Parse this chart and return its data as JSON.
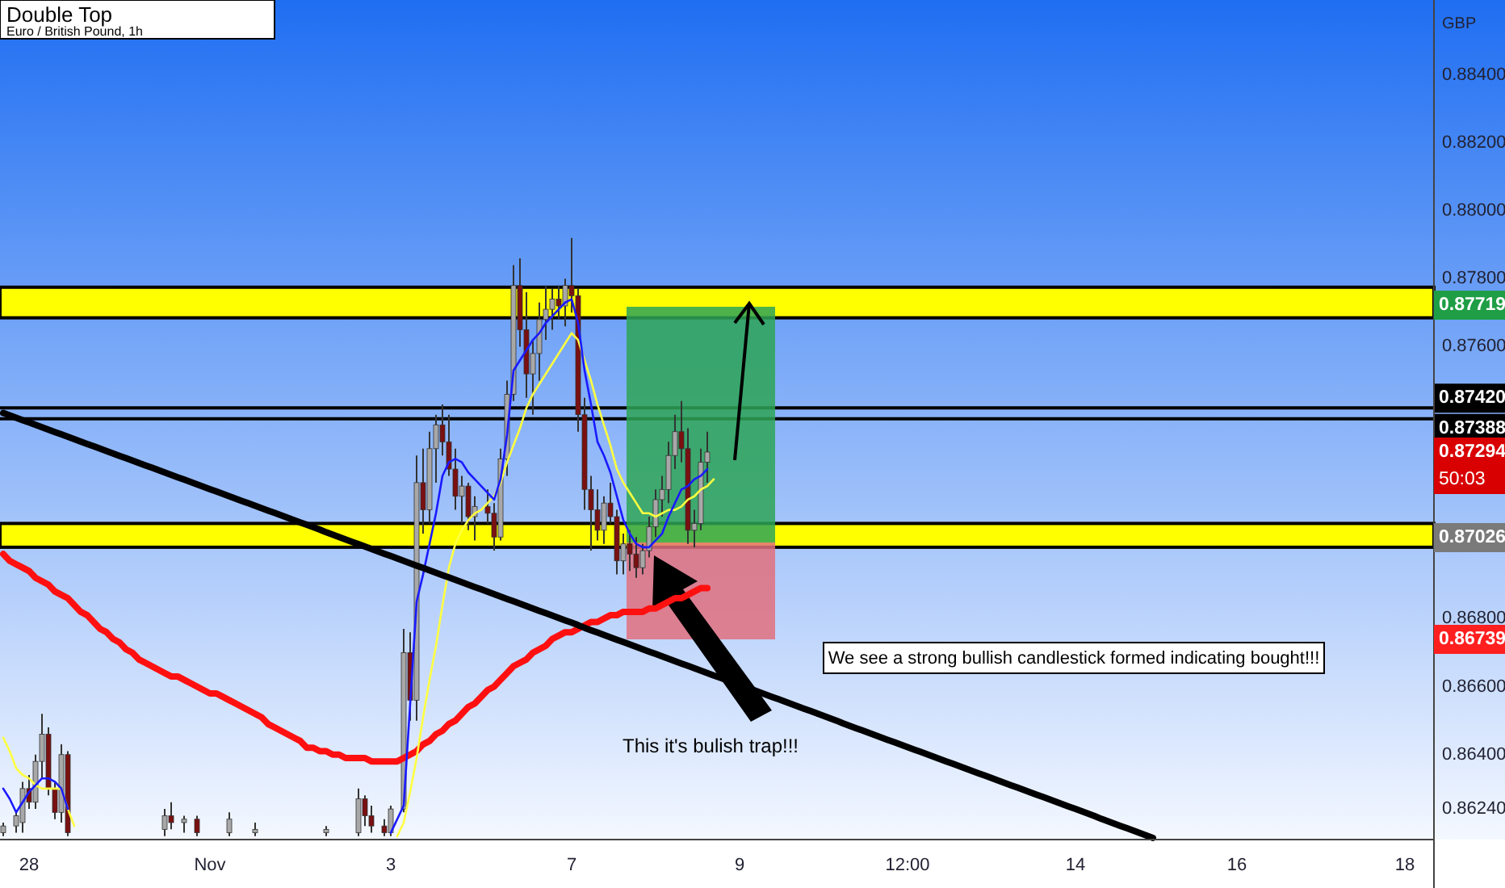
{
  "chart_data": {
    "type": "candlestick",
    "title": "Double Top",
    "subtitle": "Euro / British Pound, 1h",
    "ylabel": "GBP",
    "ylim": [
      0.8615,
      0.8862
    ],
    "yticks": [
      {
        "value": 0.884,
        "label": "0.88400"
      },
      {
        "value": 0.882,
        "label": "0.88200"
      },
      {
        "value": 0.88,
        "label": "0.88000"
      },
      {
        "value": 0.878,
        "label": "0.87800"
      },
      {
        "value": 0.876,
        "label": "0.87600"
      },
      {
        "value": 0.868,
        "label": "0.86800"
      },
      {
        "value": 0.866,
        "label": "0.86600"
      },
      {
        "value": 0.864,
        "label": "0.86400"
      },
      {
        "value": 0.8624,
        "label": "0.86240"
      }
    ],
    "categories": [
      null,
      null,
      null,
      null,
      "28",
      null,
      null,
      null,
      null,
      null,
      null,
      null,
      null,
      null,
      null,
      null,
      null,
      null,
      null,
      null,
      null,
      null,
      null,
      null,
      null,
      null,
      null,
      null,
      null,
      null,
      null,
      null,
      "Nov",
      null,
      null,
      null,
      null,
      null,
      null,
      null,
      null,
      null,
      null,
      null,
      null,
      null,
      null,
      null,
      null,
      null,
      null,
      null,
      null,
      null,
      null,
      null,
      null,
      null,
      null,
      null,
      "3",
      null,
      null,
      null,
      null,
      null,
      null,
      null,
      null,
      null,
      null,
      null,
      null,
      null,
      null,
      null,
      null,
      null,
      null,
      null,
      null,
      null,
      null,
      null,
      null,
      null,
      null,
      null,
      "7",
      null,
      null,
      null,
      null,
      null,
      null,
      null,
      null,
      null,
      null,
      null,
      null,
      null,
      null,
      null,
      null,
      null,
      null,
      null,
      null,
      null,
      null,
      null,
      null,
      null,
      "9",
      null,
      null,
      null,
      null,
      null,
      null,
      null,
      null,
      null,
      null,
      null,
      null,
      null,
      null,
      null,
      null,
      null,
      null,
      null,
      null,
      null,
      null,
      null,
      null,
      null,
      "12:00",
      null,
      null,
      null,
      null,
      null,
      null,
      null,
      null,
      null,
      null,
      null,
      null,
      null,
      null,
      null,
      null,
      null,
      null,
      null,
      null,
      null,
      null,
      null,
      null,
      null,
      "14",
      null,
      null,
      null,
      null,
      null,
      null,
      null,
      null,
      null,
      null,
      null,
      null,
      null,
      null,
      null,
      null,
      null,
      null,
      null,
      null,
      null,
      null,
      null,
      null,
      "16",
      null,
      null,
      null,
      null,
      null,
      null,
      null,
      null,
      null,
      null,
      null,
      null,
      null,
      null,
      null,
      null,
      null,
      null,
      null,
      null,
      null,
      null,
      null,
      null,
      null,
      "18",
      null,
      null,
      null,
      null
    ],
    "ohlc": [
      [
        0.8617,
        0.862,
        0.8616,
        0.8619
      ],
      null,
      [
        0.8619,
        0.8623,
        0.8617,
        0.8622
      ],
      [
        0.862,
        0.8632,
        0.8617,
        0.863
      ],
      [
        0.863,
        0.8634,
        0.8624,
        0.8626
      ],
      [
        0.8626,
        0.864,
        0.8624,
        0.8638
      ],
      [
        0.8638,
        0.8652,
        0.8633,
        0.8646
      ],
      [
        0.8646,
        0.8648,
        0.8628,
        0.863
      ],
      [
        0.863,
        0.8632,
        0.8621,
        0.8623
      ],
      [
        0.8623,
        0.8643,
        0.862,
        0.864
      ],
      [
        0.864,
        0.8641,
        0.8616,
        0.8617
      ],
      null,
      null,
      null,
      null,
      null,
      null,
      null,
      null,
      null,
      null,
      null,
      null,
      null,
      null,
      [
        0.8618,
        0.8624,
        0.8616,
        0.8622
      ],
      [
        0.8622,
        0.8626,
        0.8618,
        0.862
      ],
      null,
      [
        0.862,
        0.8622,
        0.8617,
        0.8621
      ],
      null,
      [
        0.8621,
        0.8622,
        0.8616,
        0.8617
      ],
      null,
      null,
      null,
      null,
      [
        0.8617,
        0.8623,
        0.8616,
        0.8621
      ],
      null,
      null,
      null,
      [
        0.8617,
        0.862,
        0.8616,
        0.8618
      ],
      null,
      null,
      null,
      null,
      null,
      null,
      null,
      null,
      null,
      null,
      [
        0.8617,
        0.8619,
        0.8616,
        0.8618
      ],
      null,
      null,
      null,
      null,
      [
        0.8617,
        0.863,
        0.8616,
        0.8627
      ],
      [
        0.8627,
        0.8628,
        0.8619,
        0.8622
      ],
      [
        0.8622,
        0.8625,
        0.8617,
        0.8619
      ],
      null,
      [
        0.8619,
        0.8621,
        0.8616,
        0.8617
      ],
      [
        0.8617,
        0.8625,
        0.8616,
        0.8624
      ],
      null,
      [
        0.8624,
        0.8677,
        0.8623,
        0.867
      ],
      [
        0.867,
        0.8676,
        0.865,
        0.8656
      ],
      [
        0.8656,
        0.8728,
        0.865,
        0.872
      ],
      [
        0.872,
        0.873,
        0.8705,
        0.8712
      ],
      [
        0.8712,
        0.8735,
        0.8708,
        0.873
      ],
      [
        0.873,
        0.874,
        0.872,
        0.8737
      ],
      [
        0.8737,
        0.8743,
        0.8728,
        0.8732
      ],
      [
        0.8732,
        0.874,
        0.8722,
        0.8724
      ],
      [
        0.8724,
        0.873,
        0.8712,
        0.8716
      ],
      [
        0.8716,
        0.8722,
        0.8708,
        0.8719
      ],
      [
        0.8719,
        0.872,
        0.8706,
        0.871
      ],
      [
        0.871,
        0.8716,
        0.8703,
        0.8713
      ],
      null,
      [
        0.8713,
        0.8718,
        0.8708,
        0.8711
      ],
      [
        0.8711,
        0.8714,
        0.87,
        0.8704
      ],
      [
        0.8704,
        0.873,
        0.8703,
        0.8727
      ],
      [
        0.8727,
        0.875,
        0.8722,
        0.8746
      ],
      [
        0.8746,
        0.8784,
        0.8744,
        0.8778
      ],
      [
        0.8778,
        0.8786,
        0.876,
        0.8765
      ],
      [
        0.8765,
        0.8776,
        0.8745,
        0.8752
      ],
      [
        0.8752,
        0.8762,
        0.874,
        0.8758
      ],
      [
        0.8758,
        0.8773,
        0.875,
        0.8768
      ],
      [
        0.8768,
        0.8778,
        0.8762,
        0.8771
      ],
      [
        0.8771,
        0.8777,
        0.8765,
        0.8774
      ],
      [
        0.8774,
        0.8778,
        0.8768,
        0.8772
      ],
      [
        0.8772,
        0.878,
        0.8766,
        0.8778
      ],
      [
        0.8778,
        0.8792,
        0.877,
        0.8775
      ],
      [
        0.8775,
        0.8777,
        0.8735,
        0.874
      ],
      [
        0.874,
        0.8745,
        0.8712,
        0.8718
      ],
      [
        0.8718,
        0.8722,
        0.87,
        0.8712
      ],
      [
        0.8712,
        0.8718,
        0.8703,
        0.8706
      ],
      [
        0.8706,
        0.8716,
        0.8702,
        0.8714
      ],
      [
        0.8714,
        0.872,
        0.8708,
        0.871
      ],
      [
        0.871,
        0.8712,
        0.8693,
        0.8697
      ],
      [
        0.8697,
        0.8705,
        0.8693,
        0.8702
      ],
      [
        0.8702,
        0.8706,
        0.8694,
        0.8699
      ],
      [
        0.8699,
        0.8704,
        0.8692,
        0.8695
      ],
      [
        0.8695,
        0.8702,
        0.8693,
        0.87
      ],
      [
        0.87,
        0.871,
        0.8698,
        0.8707
      ],
      [
        0.8707,
        0.8718,
        0.8704,
        0.8715
      ],
      [
        0.8715,
        0.8722,
        0.871,
        0.8718
      ],
      [
        0.8718,
        0.8732,
        0.8714,
        0.8728
      ],
      [
        0.8728,
        0.874,
        0.8724,
        0.8735
      ],
      [
        0.8735,
        0.8744,
        0.8726,
        0.873
      ],
      [
        0.873,
        0.8736,
        0.8702,
        0.8706
      ],
      [
        0.8706,
        0.8712,
        0.8701,
        0.8708
      ],
      [
        0.8708,
        0.873,
        0.8706,
        0.8726
      ],
      [
        0.8726,
        0.8735,
        0.872,
        0.8729
      ],
      null,
      null,
      null,
      null,
      null,
      null,
      null,
      null,
      null,
      null,
      null,
      null,
      null,
      null,
      null,
      null,
      null,
      null,
      null,
      null,
      null,
      null,
      null,
      null,
      null,
      null,
      null,
      null,
      null,
      null,
      null,
      null,
      null,
      null,
      null,
      null,
      null,
      null,
      null,
      null,
      null,
      null,
      null,
      null,
      null,
      null,
      null,
      null,
      null,
      null,
      null,
      null,
      null,
      null,
      null,
      null,
      null,
      null,
      null,
      null,
      null,
      null,
      null,
      null,
      null,
      null,
      null,
      null,
      null,
      null,
      null,
      null,
      null,
      null,
      null,
      null,
      null,
      null,
      null,
      null,
      null,
      null,
      null,
      null,
      null,
      null,
      null,
      null,
      null,
      null,
      null,
      null,
      null,
      null,
      null,
      null,
      null,
      null,
      null,
      null,
      null,
      null,
      null,
      null,
      null,
      null,
      null,
      null,
      null,
      null,
      null,
      null
    ],
    "series": [
      {
        "type": "line",
        "color": "#ff1010",
        "values": [
          0.8699,
          0.8697,
          0.8696,
          0.8695,
          0.8694,
          0.8692,
          0.8691,
          0.869,
          0.8688,
          0.8687,
          0.8686,
          0.8684,
          0.8682,
          0.8681,
          0.8679,
          0.8677,
          0.8676,
          0.8674,
          0.8673,
          0.8671,
          0.867,
          0.8668,
          0.8667,
          0.8666,
          0.8665,
          0.8664,
          0.8663,
          0.8663,
          0.8662,
          0.8661,
          0.866,
          0.8659,
          0.8658,
          0.8658,
          0.8657,
          0.8656,
          0.8655,
          0.8654,
          0.8653,
          0.8652,
          0.8651,
          0.8649,
          0.8648,
          0.8647,
          0.8646,
          0.8645,
          0.8644,
          0.8642,
          0.8642,
          0.8641,
          0.8641,
          0.864,
          0.864,
          0.8639,
          0.8639,
          0.8639,
          0.8639,
          0.8638,
          0.8638,
          0.8638,
          0.8638,
          0.8638,
          0.8639,
          0.864,
          0.8641,
          0.8643,
          0.8644,
          0.8646,
          0.8647,
          0.8649,
          0.865,
          0.8652,
          0.8654,
          0.8655,
          0.8657,
          0.8659,
          0.866,
          0.8662,
          0.8664,
          0.8666,
          0.8667,
          0.8668,
          0.867,
          0.8671,
          0.8672,
          0.8674,
          0.8675,
          0.8676,
          0.8676,
          0.8677,
          0.8678,
          0.8679,
          0.8679,
          0.868,
          0.8681,
          0.8681,
          0.8682,
          0.8682,
          0.8682,
          0.8682,
          0.8683,
          0.8683,
          0.8684,
          0.8685,
          0.8686,
          0.8686,
          0.8687,
          0.8688,
          0.8689,
          0.8689,
          null,
          null,
          null,
          null,
          null,
          null,
          null,
          null,
          null,
          null,
          null,
          null,
          null,
          null,
          null,
          null,
          null,
          null,
          null,
          null,
          null,
          null,
          null,
          null,
          null,
          null,
          null,
          null,
          null,
          null,
          null,
          null,
          null,
          null,
          null,
          null,
          null,
          null,
          null,
          null,
          null,
          null,
          null,
          null,
          null,
          null,
          null,
          null,
          null,
          null,
          null,
          null,
          null,
          null,
          null,
          null,
          null,
          null,
          null,
          null,
          null,
          null,
          null,
          null,
          null,
          null,
          null,
          null,
          null,
          null,
          null,
          null,
          null,
          null,
          null,
          null,
          null,
          null,
          null,
          null,
          null,
          null,
          null,
          null,
          null,
          null,
          null,
          null,
          null,
          null,
          null,
          null,
          null,
          null,
          null,
          null,
          null,
          null,
          null,
          null,
          null,
          null,
          null,
          null,
          null,
          null,
          null,
          null,
          null,
          null,
          null,
          null
        ]
      },
      {
        "type": "line",
        "color": "#ffff40",
        "values": [
          0.8645,
          0.8641,
          0.8636,
          0.8634,
          0.8633,
          0.8631,
          0.863,
          0.863,
          0.863,
          0.863,
          0.8624,
          0.8619,
          null,
          null,
          null,
          null,
          null,
          null,
          null,
          null,
          null,
          null,
          null,
          null,
          null,
          null,
          null,
          null,
          null,
          null,
          null,
          null,
          null,
          null,
          null,
          null,
          null,
          null,
          null,
          null,
          null,
          null,
          null,
          null,
          null,
          null,
          null,
          null,
          null,
          null,
          null,
          null,
          null,
          null,
          null,
          null,
          null,
          null,
          null,
          null,
          null,
          0.8616,
          0.862,
          0.8629,
          0.8639,
          0.8651,
          0.8662,
          0.8672,
          0.8684,
          0.8695,
          0.8702,
          0.8706,
          0.8709,
          0.8711,
          0.8712,
          0.8714,
          0.8716,
          0.872,
          0.8726,
          0.8731,
          0.8736,
          0.8742,
          0.8746,
          0.8749,
          0.8752,
          0.8755,
          0.8758,
          0.8761,
          0.8764,
          0.8762,
          0.8756,
          0.875,
          0.8743,
          0.8737,
          0.8731,
          0.8724,
          0.872,
          0.8717,
          0.8714,
          0.8711,
          0.8711,
          0.871,
          0.8711,
          0.8712,
          0.8712,
          0.8713,
          0.8715,
          0.8716,
          0.8718,
          0.8719,
          0.8721,
          null,
          null,
          null,
          null,
          null,
          null,
          null,
          null,
          null,
          null,
          null,
          null,
          null,
          null,
          null,
          null,
          null,
          null,
          null,
          null,
          null,
          null,
          null,
          null,
          null,
          null,
          null,
          null,
          null,
          null,
          null,
          null,
          null,
          null,
          null,
          null,
          null,
          null,
          null,
          null,
          null,
          null,
          null,
          null,
          null,
          null,
          null,
          null,
          null,
          null,
          null,
          null,
          null,
          null,
          null,
          null,
          null,
          null,
          null,
          null,
          null,
          null,
          null,
          null,
          null,
          null,
          null,
          null,
          null,
          null,
          null,
          null,
          null,
          null,
          null,
          null,
          null,
          null,
          null,
          null,
          null,
          null,
          null,
          null,
          null,
          null,
          null,
          null,
          null,
          null,
          null,
          null,
          null,
          null,
          null,
          null,
          null,
          null,
          null,
          null,
          null,
          null,
          null,
          null,
          null,
          null,
          null,
          null,
          null,
          null,
          null
        ]
      },
      {
        "type": "line",
        "color": "#1a1aff",
        "values": [
          0.863,
          0.8627,
          0.8623,
          0.8626,
          0.8629,
          0.8631,
          0.8633,
          0.8633,
          0.8632,
          0.863,
          0.8624,
          null,
          null,
          null,
          null,
          null,
          null,
          null,
          null,
          null,
          null,
          null,
          null,
          null,
          null,
          null,
          null,
          null,
          null,
          null,
          null,
          null,
          null,
          null,
          null,
          null,
          null,
          null,
          null,
          null,
          null,
          null,
          null,
          null,
          null,
          null,
          null,
          null,
          null,
          null,
          null,
          null,
          null,
          null,
          null,
          null,
          null,
          null,
          null,
          null,
          0.8617,
          0.8621,
          0.8625,
          0.8655,
          0.8685,
          0.8693,
          0.8702,
          0.8711,
          0.8722,
          0.8726,
          0.8727,
          0.8726,
          0.8723,
          0.8721,
          0.8719,
          0.8717,
          0.8715,
          0.8721,
          0.8734,
          0.8753,
          0.8756,
          0.8759,
          0.8762,
          0.8764,
          0.8767,
          0.8769,
          0.8771,
          0.8773,
          0.8774,
          0.8767,
          0.8753,
          0.8743,
          0.8732,
          0.8728,
          0.8723,
          0.8716,
          0.8709,
          0.8705,
          0.8702,
          0.8701,
          0.8701,
          0.8703,
          0.8705,
          0.871,
          0.8714,
          0.8718,
          0.8719,
          0.8721,
          0.8722,
          0.8724,
          null,
          null,
          null,
          null,
          null,
          null,
          null,
          null,
          null,
          null,
          null,
          null,
          null,
          null,
          null,
          null,
          null,
          null,
          null,
          null,
          null,
          null,
          null,
          null,
          null,
          null,
          null,
          null,
          null,
          null,
          null,
          null,
          null,
          null,
          null,
          null,
          null,
          null,
          null,
          null,
          null,
          null,
          null,
          null,
          null,
          null,
          null,
          null,
          null,
          null,
          null,
          null,
          null,
          null,
          null,
          null,
          null,
          null,
          null,
          null,
          null,
          null,
          null,
          null,
          null,
          null,
          null,
          null,
          null,
          null,
          null,
          null,
          null,
          null,
          null,
          null,
          null,
          null,
          null,
          null,
          null,
          null,
          null,
          null,
          null,
          null,
          null,
          null,
          null,
          null,
          null,
          null,
          null,
          null,
          null,
          null,
          null,
          null,
          null,
          null,
          null,
          null,
          null,
          null,
          null,
          null,
          null,
          null,
          null,
          null,
          null,
          null
        ]
      },
      {
        "type": "line",
        "color": "#000000",
        "values": [
          0.87405,
          0.87398,
          0.87391,
          0.87384,
          0.87377,
          0.8737,
          0.87363,
          0.87356,
          0.87349,
          0.87342,
          0.87335,
          0.87328,
          0.87321,
          0.87314,
          0.87307,
          0.873,
          0.87293,
          0.87286,
          0.87279,
          0.87272,
          0.87265,
          0.87258,
          0.87251,
          0.87244,
          0.87237,
          0.8723,
          0.87223,
          0.87216,
          0.87209,
          0.87202,
          0.87195,
          0.87188,
          0.87181,
          0.87174,
          0.87167,
          0.8716,
          0.87153,
          0.87146,
          0.87139,
          0.87132,
          0.87125,
          0.87118,
          0.87111,
          0.87104,
          0.87097,
          0.8709,
          0.87083,
          0.87076,
          0.87069,
          0.87062,
          0.87054,
          0.87047,
          0.8704,
          0.87033,
          0.87026,
          0.87019,
          0.87012,
          0.87005,
          0.86998,
          0.86991,
          0.86984,
          0.86977,
          0.8697,
          0.86963,
          0.86956,
          0.86949,
          0.86942,
          0.86935,
          0.86928,
          0.86921,
          0.86914,
          0.86907,
          0.869,
          0.86893,
          0.86886,
          0.86879,
          0.86872,
          0.86865,
          0.86858,
          0.86851,
          0.86844,
          0.86837,
          0.8683,
          0.86823,
          0.86816,
          0.86809,
          0.86802,
          0.86795,
          0.86788,
          0.86781,
          0.86773,
          0.86766,
          0.86759,
          0.86752,
          0.86745,
          0.86738,
          0.86731,
          0.86724,
          0.86717,
          0.8671,
          0.86703,
          0.86696,
          0.86689,
          0.86682,
          0.86675,
          0.86668,
          0.86661,
          0.86654,
          0.86647,
          0.8664,
          0.86633,
          0.86626,
          0.86619,
          0.86612,
          0.86605,
          0.86598,
          0.86591,
          0.86584,
          0.86577,
          0.8657,
          0.86563,
          0.86556,
          0.86549,
          0.86542,
          0.86535,
          0.86528,
          0.86521,
          0.86514,
          0.86507,
          0.865,
          0.86492,
          0.86485,
          0.86478,
          0.86471,
          0.86464,
          0.86457,
          0.8645,
          0.86443,
          0.86436,
          0.86429,
          0.86422,
          0.86415,
          0.86408,
          0.86401,
          0.86394,
          0.86387,
          0.8638,
          0.86373,
          0.86366,
          0.86359,
          0.86352,
          0.86345,
          0.86338,
          0.86331,
          0.86324,
          0.86317,
          0.8631,
          0.86303,
          0.86296,
          0.86289,
          0.86282,
          0.86275,
          0.86268,
          0.86261,
          0.86254,
          0.86247,
          0.8624,
          0.86233,
          0.86226,
          0.86219,
          0.86211,
          0.86204,
          0.86197,
          0.8619,
          0.86183,
          0.86176,
          0.86169,
          0.86162,
          0.86155,
          null,
          null,
          null,
          null,
          null,
          null,
          null,
          null,
          null,
          null,
          null,
          null,
          null,
          null,
          null,
          null,
          null,
          null,
          null,
          null,
          null,
          null,
          null,
          null,
          null,
          null,
          null,
          null,
          null,
          null,
          null,
          null,
          null,
          null,
          null,
          null,
          null,
          null,
          null,
          null,
          null,
          null,
          null
        ]
      }
    ],
    "bands": [
      {
        "axis": "y",
        "from": 0.87685,
        "to": 0.87775,
        "color": "#ffff00"
      },
      {
        "axis": "y",
        "from": 0.8701,
        "to": 0.8708,
        "color": "#ffff00"
      }
    ],
    "ref_lines": [
      {
        "axis": "y",
        "value": 0.8742,
        "label": "0.87420",
        "color": "#000000"
      },
      {
        "axis": "y",
        "value": 0.87388,
        "label": "0.87388",
        "color": "#000000"
      }
    ],
    "annotations": [
      "This it's bulish trap!!!",
      "We see a strong bullish candlestick formed indicating bought!!!",
      "0.87719",
      "0.87294",
      "50:03",
      "0.87026",
      "0.86739"
    ]
  }
}
